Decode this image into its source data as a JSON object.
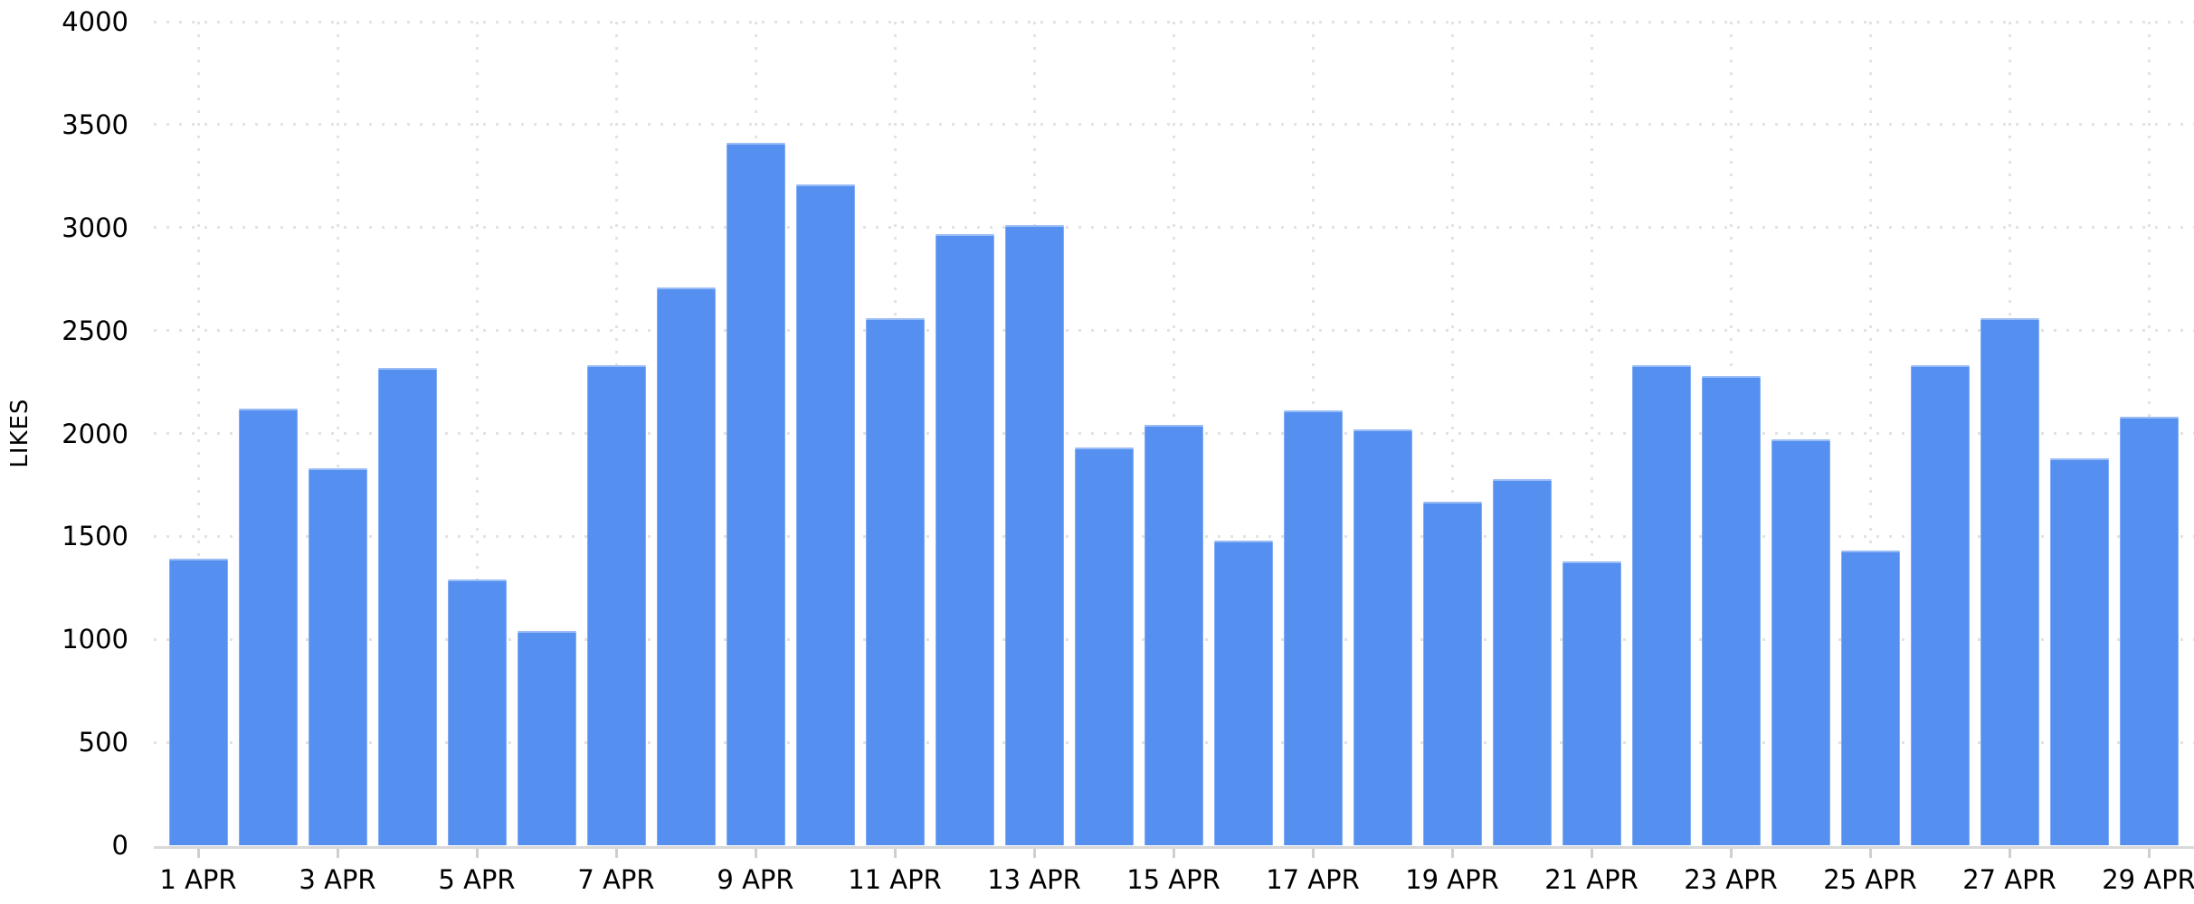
{
  "chart_data": {
    "type": "bar",
    "title": "",
    "xlabel": "",
    "ylabel": "LIKES",
    "categories": [
      "1 APR",
      "2 APR",
      "3 APR",
      "4 APR",
      "5 APR",
      "6 APR",
      "7 APR",
      "8 APR",
      "9 APR",
      "10 APR",
      "11 APR",
      "12 APR",
      "13 APR",
      "14 APR",
      "15 APR",
      "16 APR",
      "17 APR",
      "18 APR",
      "19 APR",
      "20 APR",
      "21 APR",
      "22 APR",
      "23 APR",
      "24 APR",
      "25 APR",
      "26 APR",
      "27 APR",
      "28 APR",
      "29 APR"
    ],
    "values": [
      1390,
      2120,
      1830,
      2320,
      1290,
      1040,
      2330,
      2710,
      3410,
      3210,
      2560,
      2970,
      3010,
      1930,
      2040,
      1480,
      2110,
      2020,
      1670,
      1780,
      1380,
      2330,
      2280,
      1970,
      1430,
      2330,
      2560,
      1880,
      2080
    ],
    "x_tick_labels_shown": [
      "1 APR",
      "3 APR",
      "5 APR",
      "7 APR",
      "9 APR",
      "11 APR",
      "13 APR",
      "15 APR",
      "17 APR",
      "19 APR",
      "21 APR",
      "23 APR",
      "25 APR",
      "27 APR",
      "29 APR"
    ],
    "y_ticks": [
      0,
      500,
      1000,
      1500,
      2000,
      2500,
      3000,
      3500,
      4000
    ],
    "ylim": [
      0,
      4000
    ],
    "grid": "dotted horizontal lines every 500, dotted vertical lines at odd days",
    "legend": "none"
  },
  "colors": {
    "bar": "#5590f1",
    "grid": "#e2e2e2",
    "axis_line": "#d9d9d9",
    "tick_mark": "#cfcfcf",
    "text": "#000000",
    "background": "#ffffff"
  }
}
